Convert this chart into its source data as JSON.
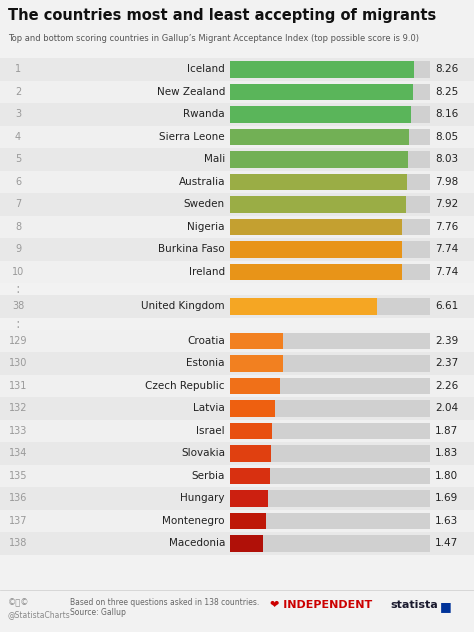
{
  "title": "The countries most and least accepting of migrants",
  "subtitle": "Top and bottom scoring countries in Gallup’s Migrant Acceptance Index (top possible score is 9.0)",
  "background_color": "#f2f2f2",
  "entries": [
    {
      "rank": "1",
      "country": "Iceland",
      "value": 8.26,
      "color": "#5ab55a",
      "gap_before": false
    },
    {
      "rank": "2",
      "country": "New Zealand",
      "value": 8.25,
      "color": "#5ab55a",
      "gap_before": false
    },
    {
      "rank": "3",
      "country": "Rwanda",
      "value": 8.16,
      "color": "#5ab55a",
      "gap_before": false
    },
    {
      "rank": "4",
      "country": "Sierra Leone",
      "value": 8.05,
      "color": "#72b055",
      "gap_before": false
    },
    {
      "rank": "5",
      "country": "Mali",
      "value": 8.03,
      "color": "#72b055",
      "gap_before": false
    },
    {
      "rank": "6",
      "country": "Australia",
      "value": 7.98,
      "color": "#9aad45",
      "gap_before": false
    },
    {
      "rank": "7",
      "country": "Sweden",
      "value": 7.92,
      "color": "#9aad45",
      "gap_before": false
    },
    {
      "rank": "8",
      "country": "Nigeria",
      "value": 7.76,
      "color": "#c4a030",
      "gap_before": false
    },
    {
      "rank": "9",
      "country": "Burkina Faso",
      "value": 7.74,
      "color": "#e89418",
      "gap_before": false
    },
    {
      "rank": "10",
      "country": "Ireland",
      "value": 7.74,
      "color": "#e89418",
      "gap_before": false
    },
    {
      "rank": "38",
      "country": "United Kingdom",
      "value": 6.61,
      "color": "#f5a623",
      "gap_before": true
    },
    {
      "rank": "129",
      "country": "Croatia",
      "value": 2.39,
      "color": "#f28020",
      "gap_before": true
    },
    {
      "rank": "130",
      "country": "Estonia",
      "value": 2.37,
      "color": "#f28020",
      "gap_before": false
    },
    {
      "rank": "131",
      "country": "Czech Republic",
      "value": 2.26,
      "color": "#f07018",
      "gap_before": false
    },
    {
      "rank": "132",
      "country": "Latvia",
      "value": 2.04,
      "color": "#ee6010",
      "gap_before": false
    },
    {
      "rank": "133",
      "country": "Israel",
      "value": 1.87,
      "color": "#e85010",
      "gap_before": false
    },
    {
      "rank": "134",
      "country": "Slovakia",
      "value": 1.83,
      "color": "#e04010",
      "gap_before": false
    },
    {
      "rank": "135",
      "country": "Serbia",
      "value": 1.8,
      "color": "#d83010",
      "gap_before": false
    },
    {
      "rank": "136",
      "country": "Hungary",
      "value": 1.69,
      "color": "#cc2010",
      "gap_before": false
    },
    {
      "rank": "137",
      "country": "Montenegro",
      "value": 1.63,
      "color": "#be1808",
      "gap_before": false
    },
    {
      "rank": "138",
      "country": "Macedonia",
      "value": 1.47,
      "color": "#b01008",
      "gap_before": false
    }
  ],
  "max_value": 9.0,
  "rank_color": "#999999",
  "country_color": "#222222",
  "value_color": "#222222",
  "row_colors": [
    "#e8e8e8",
    "#f0f0f0"
  ],
  "bar_bg_color": "#d0d0d0"
}
